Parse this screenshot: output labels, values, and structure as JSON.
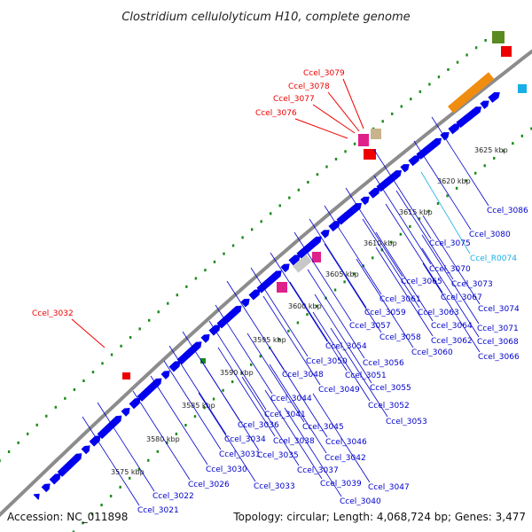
{
  "title": "Clostridium cellulolyticum H10, complete genome",
  "footer": {
    "accession": "Accession: NC_011898",
    "summary": "Topology: circular; Length: 4,068,724 bp; Genes: 3,477"
  },
  "colors": {
    "backbone": "#8c8c8c",
    "gene": "#0000ee",
    "highlight": "#ee0000",
    "rna": "#19aee6",
    "dots": "#1a8a1a",
    "leader": "#0000cc"
  },
  "ticks": [
    "3575 kbp",
    "3580 kbp",
    "3585 kbp",
    "3590 kbp",
    "3595 kbp",
    "3600 kbp",
    "3605 kbp",
    "3610 kbp",
    "3615 kbp",
    "3620 kbp",
    "3625 kbp"
  ],
  "highlighted_genes": [
    "Ccel_3032",
    "Ccel_3076",
    "Ccel_3077",
    "Ccel_3078",
    "Ccel_3079"
  ],
  "genes": [
    "Ccel_3021",
    "Ccel_3022",
    "Ccel_3026",
    "Ccel_3030",
    "Ccel_3031",
    "Ccel_3033",
    "Ccel_3034",
    "Ccel_3035",
    "Ccel_3036",
    "Ccel_3037",
    "Ccel_3038",
    "Ccel_3039",
    "Ccel_3040",
    "Ccel_3041",
    "Ccel_3042",
    "Ccel_3044",
    "Ccel_3045",
    "Ccel_3046",
    "Ccel_3047",
    "Ccel_3048",
    "Ccel_3049",
    "Ccel_3050",
    "Ccel_3051",
    "Ccel_3052",
    "Ccel_3053",
    "Ccel_3054",
    "Ccel_3055",
    "Ccel_3056",
    "Ccel_3057",
    "Ccel_3058",
    "Ccel_3059",
    "Ccel_3060",
    "Ccel_3061",
    "Ccel_3062",
    "Ccel_3063",
    "Ccel_3064",
    "Ccel_3065",
    "Ccel_3066",
    "Ccel_3067",
    "Ccel_3068",
    "Ccel_3070",
    "Ccel_3071",
    "Ccel_3073",
    "Ccel_3074",
    "Ccel_3075",
    "Ccel_3080",
    "Ccel_3086"
  ],
  "rna_genes": [
    "Ccel_R0074"
  ]
}
